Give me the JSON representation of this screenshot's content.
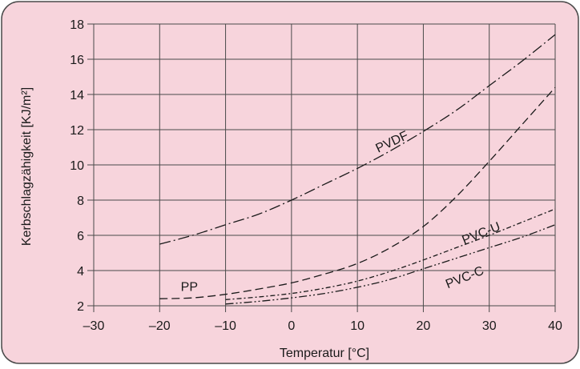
{
  "colors": {
    "panel": "#f7d4dc",
    "border": "#4a4a4a",
    "grid": "#4a4a4a",
    "curve": "#1a1a1a"
  },
  "chart_data": {
    "type": "line",
    "title": "",
    "xlabel": "Temperatur [°C]",
    "ylabel": "Kerbschlagzähigkeit [KJ/m²]",
    "xlim": [
      -30,
      40
    ],
    "ylim": [
      2,
      18
    ],
    "x_ticks": [
      -30,
      -20,
      -10,
      0,
      10,
      20,
      30,
      40
    ],
    "x_tick_labels": [
      "–30",
      "–20",
      "–10",
      "0",
      "10",
      "20",
      "30",
      "40"
    ],
    "y_ticks": [
      2,
      4,
      6,
      8,
      10,
      12,
      14,
      16,
      18
    ],
    "y_tick_labels": [
      "2",
      "4",
      "6",
      "8",
      "10",
      "12",
      "14",
      "16",
      "18"
    ],
    "grid": true,
    "legend": "none",
    "series": [
      {
        "name": "PVDF",
        "style": "dashdot",
        "points": [
          [
            -20,
            5.5
          ],
          [
            -15,
            6.0
          ],
          [
            -10,
            6.6
          ],
          [
            -5,
            7.2
          ],
          [
            0,
            8.0
          ],
          [
            5,
            8.9
          ],
          [
            10,
            9.8
          ],
          [
            15,
            10.8
          ],
          [
            20,
            11.9
          ],
          [
            25,
            13.1
          ],
          [
            30,
            14.5
          ],
          [
            35,
            15.9
          ],
          [
            40,
            17.4
          ]
        ]
      },
      {
        "name": "PP",
        "style": "dashed",
        "points": [
          [
            -20,
            2.4
          ],
          [
            -15,
            2.45
          ],
          [
            -10,
            2.65
          ],
          [
            -5,
            2.95
          ],
          [
            0,
            3.3
          ],
          [
            5,
            3.8
          ],
          [
            10,
            4.4
          ],
          [
            15,
            5.3
          ],
          [
            20,
            6.5
          ],
          [
            25,
            8.2
          ],
          [
            30,
            10.2
          ],
          [
            35,
            12.3
          ],
          [
            40,
            14.4
          ]
        ]
      },
      {
        "name": "PVC-U",
        "style": "dotted-dash",
        "points": [
          [
            -10,
            2.35
          ],
          [
            -5,
            2.5
          ],
          [
            0,
            2.7
          ],
          [
            5,
            3.0
          ],
          [
            10,
            3.4
          ],
          [
            15,
            3.95
          ],
          [
            20,
            4.6
          ],
          [
            25,
            5.3
          ],
          [
            30,
            6.0
          ],
          [
            35,
            6.75
          ],
          [
            40,
            7.5
          ]
        ]
      },
      {
        "name": "PVC-C",
        "style": "dashdotdot",
        "points": [
          [
            -10,
            2.1
          ],
          [
            -5,
            2.25
          ],
          [
            0,
            2.45
          ],
          [
            5,
            2.7
          ],
          [
            10,
            3.05
          ],
          [
            15,
            3.5
          ],
          [
            20,
            4.1
          ],
          [
            25,
            4.7
          ],
          [
            30,
            5.3
          ],
          [
            35,
            5.9
          ],
          [
            40,
            6.6
          ]
        ]
      }
    ],
    "annotations": [
      {
        "text": "PVDF",
        "x": 15.5,
        "y": 11.1,
        "rotate": -25
      },
      {
        "text": "PP",
        "x": -15.5,
        "y": 2.85,
        "rotate": 0
      },
      {
        "text": "PVC-U",
        "x": 29,
        "y": 5.9,
        "rotate": -22
      },
      {
        "text": "PVC-C",
        "x": 26.5,
        "y": 3.4,
        "rotate": -22
      }
    ]
  }
}
